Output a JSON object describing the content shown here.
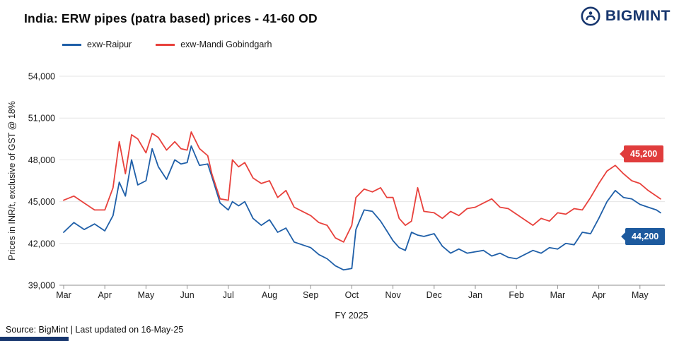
{
  "header": {
    "title": "India: ERW pipes (patra based) prices - 41-60 OD",
    "logo_text": "BIGMINT",
    "logo_color": "#17366e"
  },
  "legend": [
    {
      "label": "exw-Raipur",
      "color": "#1f5fa8"
    },
    {
      "label": "exw-Mandi Gobindgarh",
      "color": "#e8413c"
    }
  ],
  "footer": {
    "source_text": "Source: BigMint  | Last updated on 16-May-25"
  },
  "chart_data": {
    "type": "line",
    "title": "India: ERW pipes (patra based) prices - 41-60 OD",
    "xlabel": "FY 2025",
    "ylabel": "Prices in INR/t, exclusive of GST @ 18%",
    "ylim": [
      39000,
      54000
    ],
    "yticks": [
      39000,
      42000,
      45000,
      48000,
      51000,
      54000
    ],
    "x_tick_labels": [
      "Mar",
      "Apr",
      "May",
      "Jun",
      "Jul",
      "Aug",
      "Sep",
      "Oct",
      "Nov",
      "Dec",
      "Jan",
      "Feb",
      "Mar",
      "Apr",
      "May"
    ],
    "grid": "horizontal",
    "legend_position": "top-left",
    "x_months": [
      0,
      0.25,
      0.5,
      0.75,
      1,
      1.2,
      1.35,
      1.5,
      1.65,
      1.8,
      2,
      2.15,
      2.3,
      2.5,
      2.7,
      2.85,
      3,
      3.1,
      3.3,
      3.5,
      3.6,
      3.8,
      4,
      4.1,
      4.25,
      4.4,
      4.6,
      4.8,
      5,
      5.2,
      5.4,
      5.6,
      5.8,
      6,
      6.2,
      6.4,
      6.6,
      6.8,
      7,
      7.1,
      7.3,
      7.5,
      7.7,
      7.85,
      8,
      8.15,
      8.3,
      8.45,
      8.6,
      8.75,
      9,
      9.2,
      9.4,
      9.6,
      9.8,
      10,
      10.2,
      10.4,
      10.6,
      10.8,
      11,
      11.2,
      11.4,
      11.6,
      11.8,
      12,
      12.2,
      12.4,
      12.6,
      12.8,
      13,
      13.2,
      13.4,
      13.6,
      13.8,
      14,
      14.2,
      14.4,
      14.5
    ],
    "series": [
      {
        "name": "exw-Raipur",
        "color": "#1f5fa8",
        "values": [
          42800,
          43500,
          43000,
          43400,
          42900,
          44000,
          46400,
          45400,
          48000,
          46200,
          46500,
          48800,
          47500,
          46600,
          48000,
          47700,
          47800,
          49000,
          47600,
          47700,
          46800,
          44900,
          44400,
          45000,
          44700,
          45000,
          43800,
          43300,
          43700,
          42800,
          43100,
          42100,
          41900,
          41700,
          41200,
          40900,
          40400,
          40100,
          40200,
          43000,
          44400,
          44300,
          43600,
          42900,
          42200,
          41700,
          41500,
          42800,
          42600,
          42500,
          42700,
          41800,
          41300,
          41600,
          41300,
          41400,
          41500,
          41100,
          41300,
          41000,
          40900,
          41200,
          41500,
          41300,
          41700,
          41600,
          42000,
          41900,
          42800,
          42700,
          43800,
          45000,
          45800,
          45300,
          45200,
          44800,
          44600,
          44400,
          44200
        ]
      },
      {
        "name": "exw-Mandi Gobindgarh",
        "color": "#e8413c",
        "values": [
          45100,
          45400,
          44900,
          44400,
          44400,
          46000,
          49300,
          47000,
          49800,
          49500,
          48500,
          49900,
          49600,
          48700,
          49300,
          48800,
          48700,
          50000,
          48800,
          48300,
          47000,
          45200,
          45100,
          48000,
          47500,
          47800,
          46700,
          46300,
          46500,
          45300,
          45800,
          44600,
          44300,
          44000,
          43500,
          43300,
          42400,
          42100,
          43300,
          45300,
          45900,
          45700,
          46000,
          45300,
          45300,
          43800,
          43300,
          43600,
          46000,
          44300,
          44200,
          43800,
          44300,
          44000,
          44500,
          44600,
          44900,
          45200,
          44600,
          44500,
          44100,
          43700,
          43300,
          43800,
          43600,
          44200,
          44100,
          44500,
          44400,
          45300,
          46300,
          47200,
          47600,
          47000,
          46500,
          46300,
          45800,
          45400,
          45200
        ]
      }
    ],
    "end_labels": [
      {
        "series": "exw-Mandi Gobindgarh",
        "value": "45,200",
        "color": "#e03c3c"
      },
      {
        "series": "exw-Raipur",
        "value": "44,200",
        "color": "#1d5a9e"
      }
    ]
  }
}
